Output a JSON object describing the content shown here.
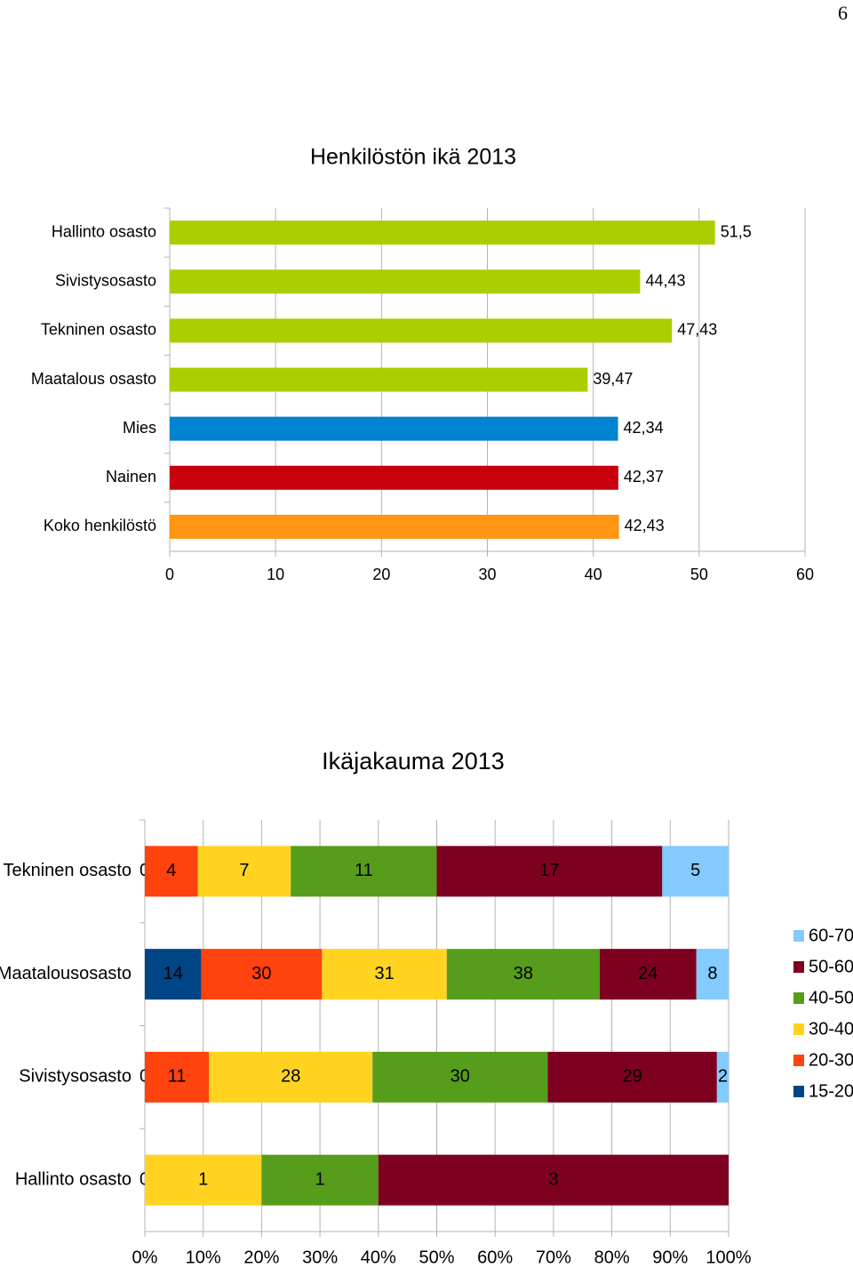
{
  "page": {
    "number": "6"
  },
  "chart_data": [
    {
      "type": "bar",
      "orientation": "horizontal",
      "title": "Henkilöstön ikä 2013",
      "categories": [
        "Hallinto osasto",
        "Sivistysosasto",
        "Tekninen osasto",
        "Maatalous osasto",
        "Mies",
        "Nainen",
        "Koko henkilöstö"
      ],
      "values": [
        51.5,
        44.43,
        47.43,
        39.47,
        42.34,
        42.37,
        42.43
      ],
      "value_labels": [
        "51,5",
        "44,43",
        "47,43",
        "39,47",
        "42,34",
        "42,37",
        "42,43"
      ],
      "colors": [
        "#aacf00",
        "#aacf00",
        "#aacf00",
        "#aacf00",
        "#0083d0",
        "#c9000e",
        "#ff9512"
      ],
      "xlim": [
        0,
        60
      ],
      "xticks": [
        "0",
        "10",
        "20",
        "30",
        "40",
        "50",
        "60"
      ],
      "grid": true
    },
    {
      "type": "bar",
      "orientation": "horizontal",
      "stacked": "percent",
      "title": "Ikäjakauma 2013",
      "categories": [
        "Tekninen osasto",
        "Maatalousosasto",
        "Sivistysosasto",
        "Hallinto osasto"
      ],
      "category_prefix_labels": [
        "0",
        "",
        "0",
        "0"
      ],
      "series": [
        {
          "name": "15-20",
          "color": "#004586",
          "values": [
            0,
            14,
            0,
            0
          ]
        },
        {
          "name": "20-30",
          "color": "#ff420e",
          "values": [
            4,
            30,
            11,
            0
          ]
        },
        {
          "name": "30-40",
          "color": "#ffd320",
          "values": [
            7,
            31,
            28,
            1
          ]
        },
        {
          "name": "40-50",
          "color": "#579d1c",
          "values": [
            11,
            38,
            30,
            1
          ]
        },
        {
          "name": "50-60",
          "color": "#7e0021",
          "values": [
            17,
            24,
            29,
            3
          ]
        },
        {
          "name": "60-70",
          "color": "#83caff",
          "values": [
            5,
            8,
            2,
            0
          ]
        }
      ],
      "legend_order": [
        "60-70",
        "50-60",
        "40-50",
        "30-40",
        "20-30",
        "15-20"
      ],
      "legend_position": "right",
      "xticks": [
        "0%",
        "10%",
        "20%",
        "30%",
        "40%",
        "50%",
        "60%",
        "70%",
        "80%",
        "90%",
        "100%"
      ],
      "grid": true
    }
  ]
}
